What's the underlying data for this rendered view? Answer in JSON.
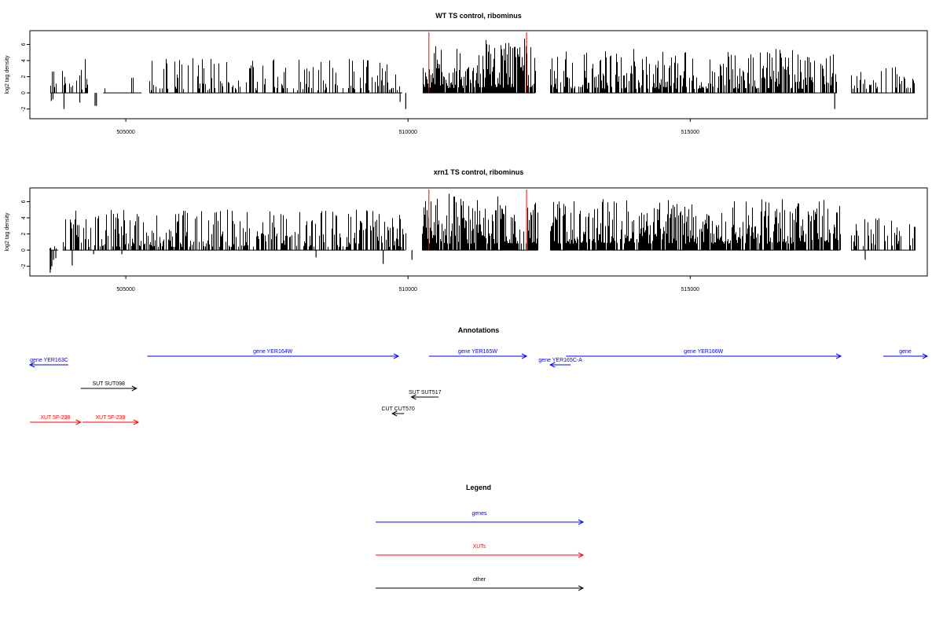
{
  "chart_data": [
    {
      "type": "bar",
      "title": "WT TS control, ribominus",
      "ylabel": "log2 tag density",
      "xlabel": "",
      "xlim": [
        503300,
        519200
      ],
      "ylim": [
        -3.2,
        7.7
      ],
      "xticks": [
        505000,
        510000,
        515000
      ],
      "xtick_labels": [
        "505000",
        "510000",
        "515000"
      ],
      "yticks": [
        -2,
        0,
        2,
        4,
        6
      ],
      "ytick_labels": [
        "-2",
        "0",
        "2",
        "4",
        "6"
      ],
      "bar_color": "#000000",
      "segments": [
        {
          "start": 503660,
          "end": 504330,
          "seed": 11,
          "min": 0.4,
          "max": 4.2,
          "density": 0.34,
          "neg": [
            [
              503680,
              -1.0
            ],
            [
              503710,
              -0.8
            ],
            [
              503905,
              -2.0
            ],
            [
              504185,
              -1.2
            ],
            [
              504455,
              -1.6
            ],
            [
              504480,
              -1.6
            ]
          ]
        },
        {
          "start": 504600,
          "end": 505280,
          "seed": 12,
          "min": 0.5,
          "max": 2.6,
          "density": 0.07,
          "neg": []
        },
        {
          "start": 505420,
          "end": 509900,
          "seed": 13,
          "min": 0.3,
          "max": 4.3,
          "density": 0.38,
          "neg": [
            [
              509860,
              -1.1
            ],
            [
              509960,
              -2.0
            ]
          ]
        },
        {
          "start": 510260,
          "end": 512250,
          "seed": 14,
          "min": 0.6,
          "max": 7.1,
          "density": 0.9,
          "neg": []
        },
        {
          "start": 512520,
          "end": 517600,
          "seed": 15,
          "min": 0.5,
          "max": 5.5,
          "density": 0.72,
          "neg": [
            [
              517560,
              -2.0
            ]
          ]
        },
        {
          "start": 517850,
          "end": 518980,
          "seed": 16,
          "min": 0.5,
          "max": 3.3,
          "density": 0.42,
          "neg": []
        }
      ],
      "markers": [
        510370,
        512100
      ],
      "marker_color": "#ff0000"
    },
    {
      "type": "bar",
      "title": "xrn1 TS control, ribominus",
      "ylabel": "log2 tag density",
      "xlabel": "",
      "xlim": [
        503300,
        519200
      ],
      "ylim": [
        -3.2,
        7.7
      ],
      "xticks": [
        505000,
        510000,
        515000
      ],
      "xtick_labels": [
        "505000",
        "510000",
        "515000"
      ],
      "yticks": [
        -2,
        0,
        2,
        4,
        6
      ],
      "ytick_labels": [
        "-2",
        "0",
        "2",
        "4",
        "6"
      ],
      "bar_color": "#000000",
      "segments": [
        {
          "start": 503650,
          "end": 503800,
          "seed": 21,
          "min": 0.2,
          "max": 0.6,
          "density": 0.3,
          "neg": [
            [
              503660,
              -2.8
            ],
            [
              503670,
              -2.4
            ],
            [
              503690,
              -2.0
            ],
            [
              503720,
              -1.2
            ],
            [
              503760,
              -1.0
            ]
          ]
        },
        {
          "start": 503880,
          "end": 509950,
          "seed": 22,
          "min": 0.4,
          "max": 5.0,
          "density": 0.6,
          "neg": [
            [
              504050,
              -1.9
            ],
            [
              504430,
              -0.5
            ],
            [
              504930,
              -0.5
            ],
            [
              508370,
              -0.9
            ],
            [
              509560,
              -1.7
            ],
            [
              510070,
              -1.2
            ]
          ]
        },
        {
          "start": 510250,
          "end": 512300,
          "seed": 23,
          "min": 0.8,
          "max": 7.0,
          "density": 0.9,
          "neg": []
        },
        {
          "start": 512520,
          "end": 517650,
          "seed": 24,
          "min": 0.8,
          "max": 6.3,
          "density": 0.85,
          "neg": [
            [
              518100,
              -1.2
            ]
          ]
        },
        {
          "start": 517850,
          "end": 518990,
          "seed": 25,
          "min": 0.5,
          "max": 4.0,
          "density": 0.5,
          "neg": []
        }
      ],
      "markers": [
        510370,
        512100
      ],
      "marker_color": "#ff0000"
    }
  ],
  "annotations": {
    "title": "Annotations",
    "xlim": [
      503300,
      519200
    ],
    "features": [
      {
        "label": "gene YER163C",
        "color": "#0000ff",
        "start": 503300,
        "end": 503980,
        "dir": "left",
        "row": 0
      },
      {
        "label": "gene YER164W",
        "color": "#0000ff",
        "start": 505380,
        "end": 509830,
        "dir": "right",
        "row": 1
      },
      {
        "label": "gene YER165W",
        "color": "#0000ff",
        "start": 510370,
        "end": 512100,
        "dir": "right",
        "row": 1
      },
      {
        "label": "gene YER165C-A",
        "color": "#0000ff",
        "start": 512520,
        "end": 512880,
        "dir": "left",
        "row": 0
      },
      {
        "label": "gene YER166W",
        "color": "#0000ff",
        "start": 512800,
        "end": 517670,
        "dir": "right",
        "row": 1
      },
      {
        "label": "gene",
        "color": "#0000ff",
        "start": 518420,
        "end": 519200,
        "dir": "right",
        "row": 1
      },
      {
        "label": "SUT SUT098",
        "color": "#000000",
        "start": 504200,
        "end": 505190,
        "dir": "right",
        "row": 2
      },
      {
        "label": "SUT SUT517",
        "color": "#000000",
        "start": 510060,
        "end": 510540,
        "dir": "left",
        "row": 3
      },
      {
        "label": "CUT CUT570",
        "color": "#000000",
        "start": 509720,
        "end": 509930,
        "dir": "left",
        "row": 4
      },
      {
        "label": "XUT 5F-238",
        "color": "#ff0000",
        "start": 503300,
        "end": 504200,
        "dir": "right",
        "row": 5
      },
      {
        "label": "XUT 5F-239",
        "color": "#ff0000",
        "start": 504230,
        "end": 505220,
        "dir": "right",
        "row": 5
      }
    ]
  },
  "legend": {
    "title": "Legend",
    "items": [
      {
        "label": "genes",
        "color": "#0000ff"
      },
      {
        "label": "XUTs",
        "color": "#ff0000"
      },
      {
        "label": "other",
        "color": "#000000"
      }
    ]
  }
}
